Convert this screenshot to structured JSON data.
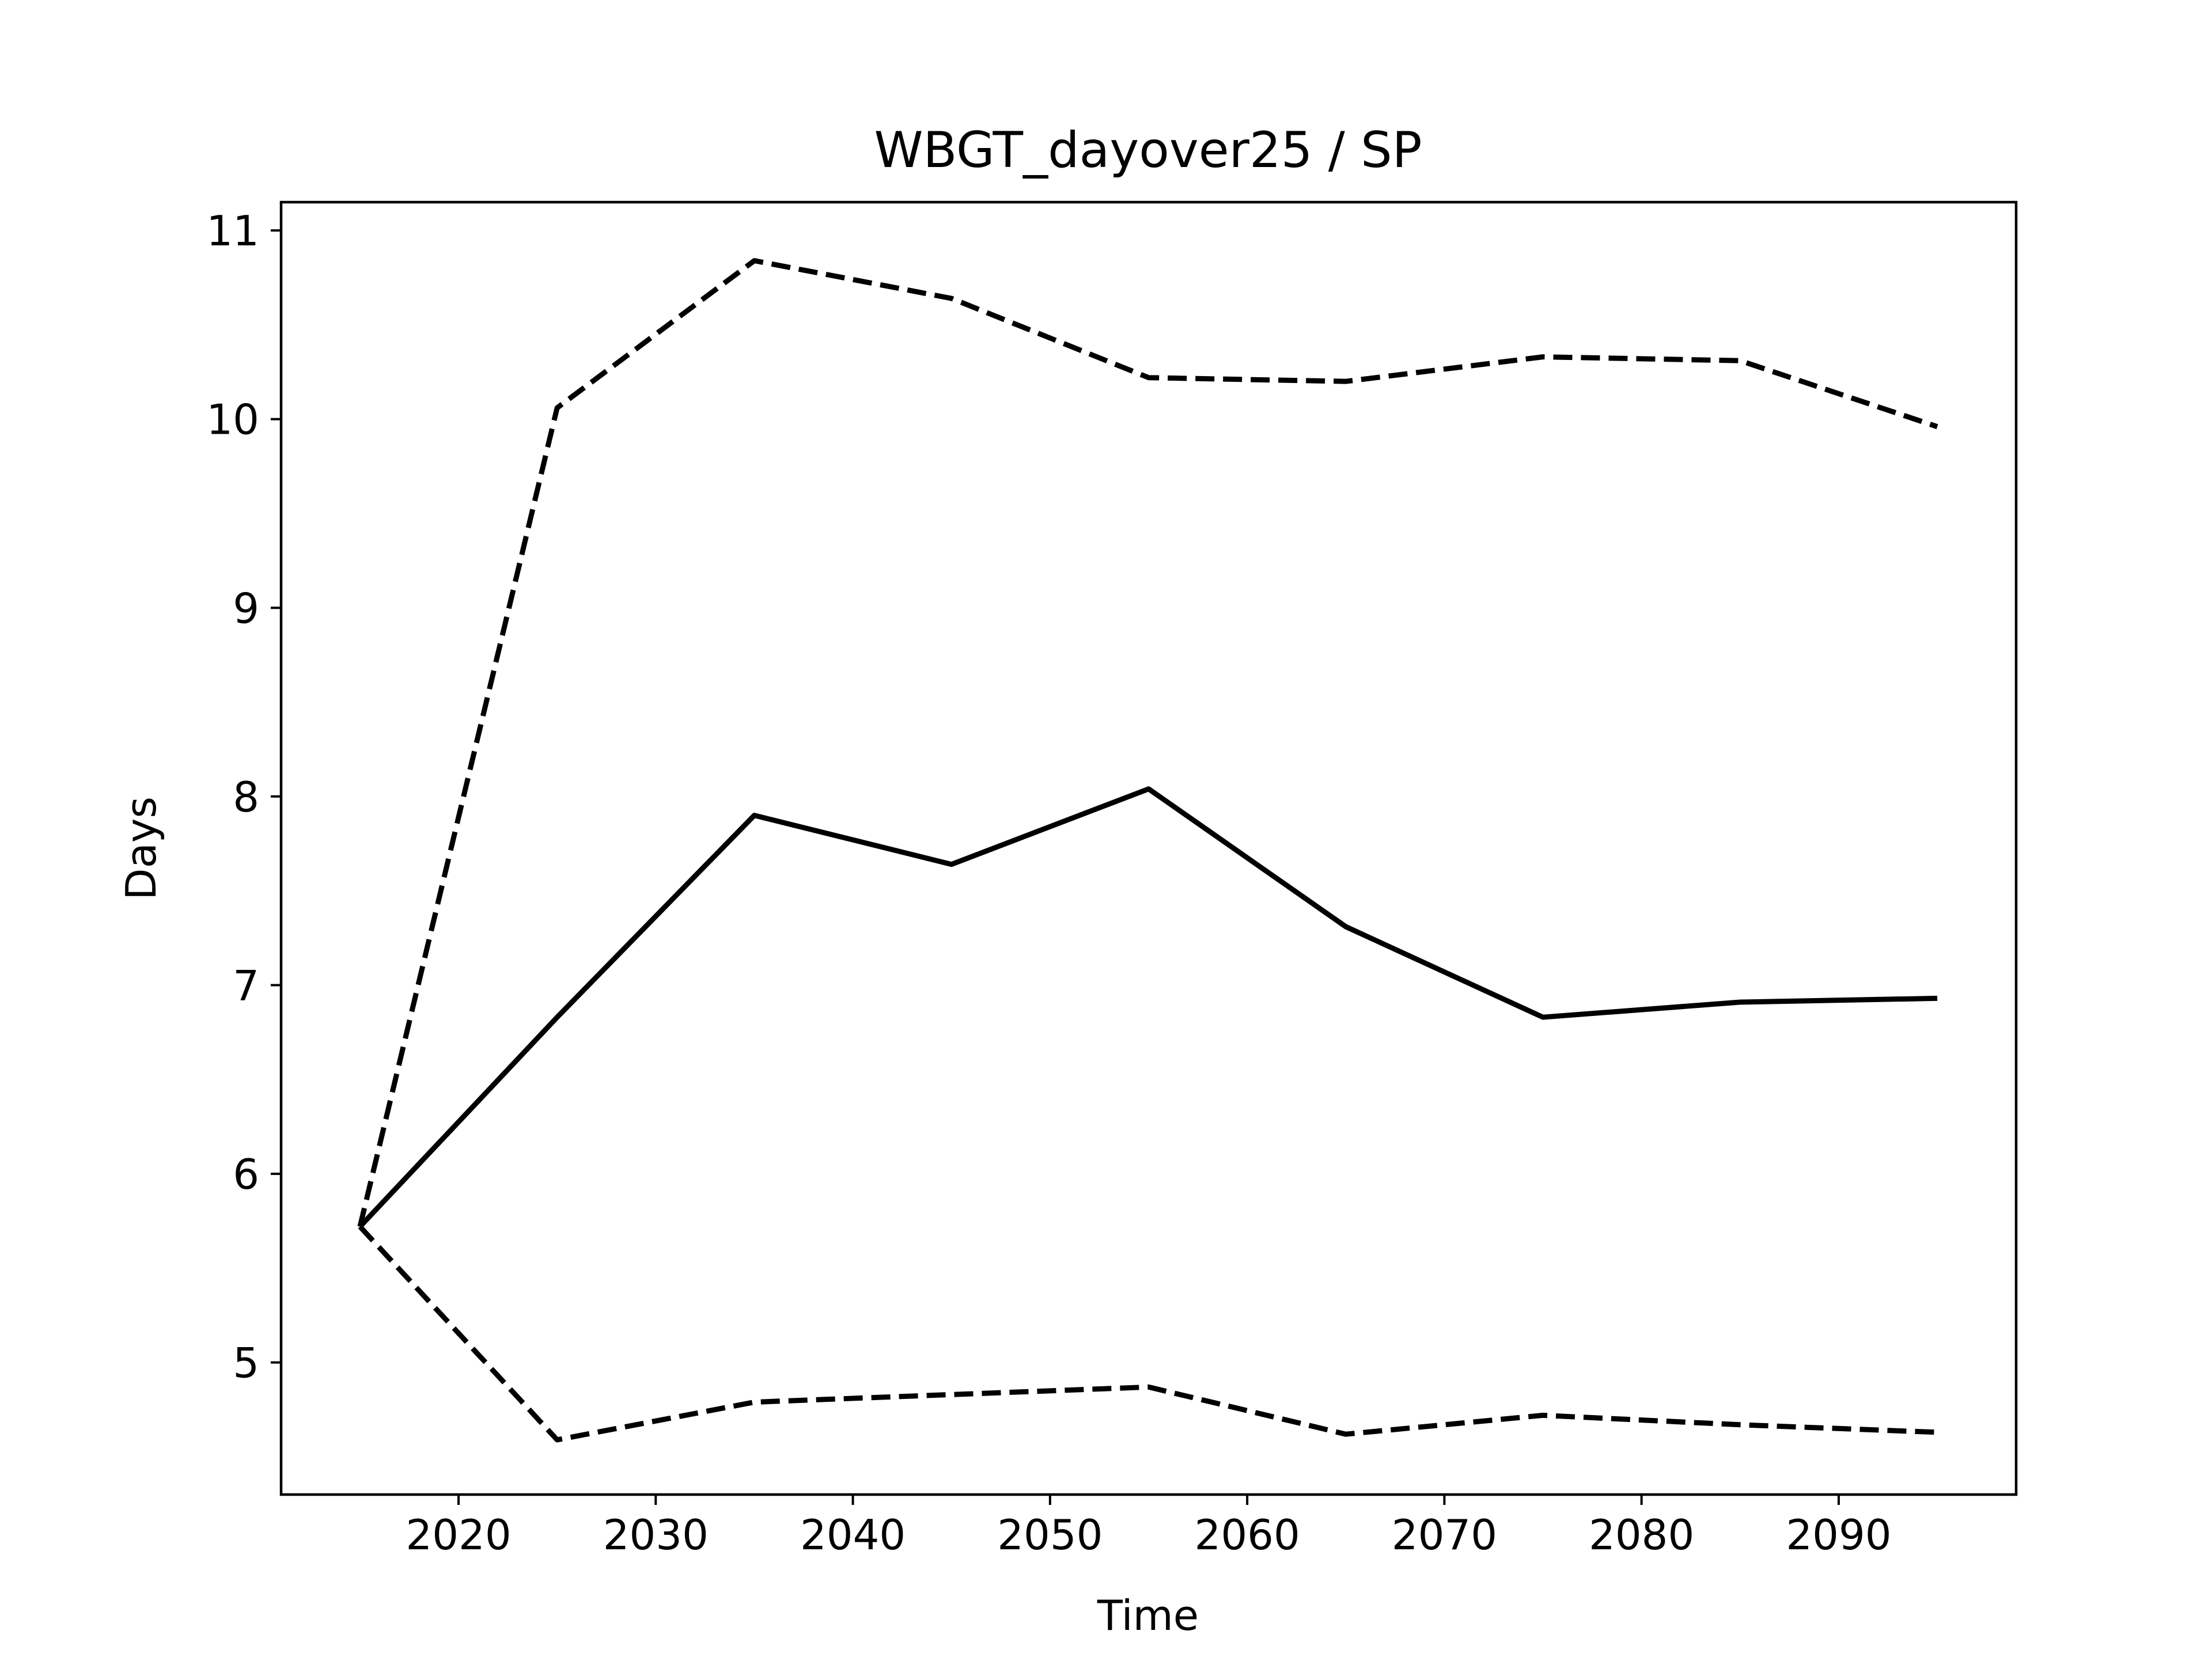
{
  "chart_data": {
    "type": "line",
    "title": "WBGT_dayover25 / SP",
    "xlabel": "Time",
    "ylabel": "Days",
    "x": [
      2015,
      2025,
      2035,
      2045,
      2055,
      2065,
      2075,
      2085,
      2095
    ],
    "xlim": [
      2011,
      2099
    ],
    "ylim": [
      4.3,
      11.15
    ],
    "xticks": [
      2020,
      2030,
      2040,
      2050,
      2060,
      2070,
      2080,
      2090
    ],
    "yticks": [
      5,
      6,
      7,
      8,
      9,
      10,
      11
    ],
    "grid": false,
    "legend": "none",
    "series": [
      {
        "values": [
          5.72,
          10.06,
          10.84,
          10.64,
          10.22,
          10.2,
          10.33,
          10.31,
          9.96
        ],
        "style": "dashed",
        "color": "#000000"
      },
      {
        "values": [
          5.72,
          6.83,
          7.9,
          7.64,
          8.04,
          7.31,
          6.83,
          6.91,
          6.93
        ],
        "style": "solid",
        "color": "#000000"
      },
      {
        "values": [
          5.72,
          4.59,
          4.79,
          4.83,
          4.87,
          4.62,
          4.72,
          4.67,
          4.63
        ],
        "style": "dashed",
        "color": "#000000"
      }
    ]
  }
}
